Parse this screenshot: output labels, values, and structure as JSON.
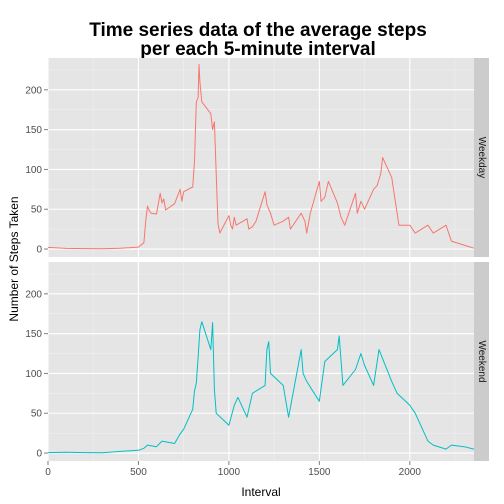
{
  "chart_data": {
    "type": "line",
    "title_lines": [
      "Time series data of the average steps",
      "per each 5-minute interval"
    ],
    "xlabel": "Interval",
    "ylabel": "Number of Steps Taken",
    "xlim": [
      0,
      2355
    ],
    "ylim": [
      -10,
      240
    ],
    "x_ticks": [
      0,
      500,
      1000,
      1500,
      2000
    ],
    "y_ticks": [
      0,
      50,
      100,
      150,
      200
    ],
    "grid": true,
    "facets": [
      {
        "label": "Weekday",
        "color": "#F8766D",
        "points": [
          [
            0,
            2.0
          ],
          [
            100,
            0.8
          ],
          [
            200,
            0.5
          ],
          [
            300,
            0.4
          ],
          [
            400,
            0.9
          ],
          [
            500,
            2.5
          ],
          [
            530,
            8
          ],
          [
            540,
            35
          ],
          [
            550,
            54
          ],
          [
            560,
            48
          ],
          [
            570,
            45
          ],
          [
            600,
            44
          ],
          [
            620,
            70
          ],
          [
            630,
            58
          ],
          [
            640,
            63
          ],
          [
            650,
            49
          ],
          [
            700,
            57
          ],
          [
            730,
            75
          ],
          [
            740,
            60
          ],
          [
            750,
            72
          ],
          [
            800,
            78
          ],
          [
            810,
            110
          ],
          [
            820,
            185
          ],
          [
            830,
            190
          ],
          [
            835,
            232
          ],
          [
            840,
            210
          ],
          [
            850,
            185
          ],
          [
            900,
            170
          ],
          [
            910,
            150
          ],
          [
            920,
            160
          ],
          [
            930,
            95
          ],
          [
            940,
            32
          ],
          [
            950,
            20
          ],
          [
            1000,
            42
          ],
          [
            1010,
            30
          ],
          [
            1020,
            25
          ],
          [
            1030,
            40
          ],
          [
            1040,
            30
          ],
          [
            1100,
            38
          ],
          [
            1110,
            25
          ],
          [
            1130,
            28
          ],
          [
            1150,
            35
          ],
          [
            1200,
            72
          ],
          [
            1210,
            56
          ],
          [
            1220,
            50
          ],
          [
            1230,
            45
          ],
          [
            1250,
            30
          ],
          [
            1300,
            35
          ],
          [
            1330,
            40
          ],
          [
            1340,
            25
          ],
          [
            1400,
            45
          ],
          [
            1420,
            35
          ],
          [
            1430,
            20
          ],
          [
            1450,
            45
          ],
          [
            1500,
            85
          ],
          [
            1510,
            60
          ],
          [
            1530,
            65
          ],
          [
            1550,
            85
          ],
          [
            1600,
            58
          ],
          [
            1620,
            40
          ],
          [
            1640,
            30
          ],
          [
            1700,
            70
          ],
          [
            1710,
            45
          ],
          [
            1730,
            60
          ],
          [
            1750,
            50
          ],
          [
            1800,
            75
          ],
          [
            1820,
            80
          ],
          [
            1840,
            95
          ],
          [
            1850,
            115
          ],
          [
            1900,
            90
          ],
          [
            1920,
            60
          ],
          [
            1940,
            30
          ],
          [
            2000,
            30
          ],
          [
            2030,
            20
          ],
          [
            2100,
            30
          ],
          [
            2130,
            20
          ],
          [
            2200,
            30
          ],
          [
            2230,
            10
          ],
          [
            2300,
            5
          ],
          [
            2355,
            1
          ]
        ]
      },
      {
        "label": "Weekend",
        "color": "#00BFC4",
        "points": [
          [
            0,
            0.5
          ],
          [
            100,
            1.0
          ],
          [
            200,
            0.6
          ],
          [
            300,
            0.4
          ],
          [
            400,
            2.0
          ],
          [
            500,
            3.5
          ],
          [
            530,
            6
          ],
          [
            550,
            10
          ],
          [
            600,
            8
          ],
          [
            630,
            15
          ],
          [
            700,
            12
          ],
          [
            730,
            24
          ],
          [
            750,
            30
          ],
          [
            800,
            55
          ],
          [
            810,
            78
          ],
          [
            820,
            88
          ],
          [
            830,
            120
          ],
          [
            840,
            155
          ],
          [
            850,
            165
          ],
          [
            900,
            130
          ],
          [
            910,
            164
          ],
          [
            920,
            80
          ],
          [
            930,
            50
          ],
          [
            1000,
            35
          ],
          [
            1030,
            60
          ],
          [
            1050,
            70
          ],
          [
            1100,
            45
          ],
          [
            1130,
            75
          ],
          [
            1200,
            85
          ],
          [
            1210,
            130
          ],
          [
            1220,
            140
          ],
          [
            1230,
            100
          ],
          [
            1300,
            85
          ],
          [
            1330,
            45
          ],
          [
            1400,
            130
          ],
          [
            1410,
            100
          ],
          [
            1430,
            90
          ],
          [
            1500,
            65
          ],
          [
            1530,
            115
          ],
          [
            1600,
            130
          ],
          [
            1610,
            147
          ],
          [
            1630,
            85
          ],
          [
            1700,
            105
          ],
          [
            1730,
            125
          ],
          [
            1750,
            110
          ],
          [
            1800,
            85
          ],
          [
            1830,
            130
          ],
          [
            1900,
            90
          ],
          [
            1930,
            75
          ],
          [
            2000,
            60
          ],
          [
            2030,
            50
          ],
          [
            2100,
            15
          ],
          [
            2130,
            10
          ],
          [
            2200,
            5
          ],
          [
            2230,
            10
          ],
          [
            2300,
            8
          ],
          [
            2355,
            5
          ]
        ]
      }
    ]
  }
}
